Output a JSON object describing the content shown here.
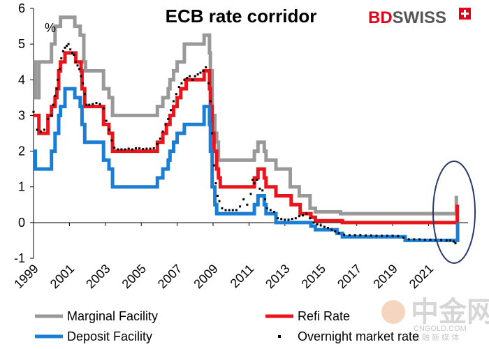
{
  "brand": {
    "name": "BDSWISS",
    "accent": "#e2001a"
  },
  "watermark": {
    "logo_text": "中金网",
    "url_text": "CNGOLD.COM",
    "tagline": "金 融 新 媒 体"
  },
  "chart_data": {
    "type": "line",
    "title": "ECB rate corridor",
    "ylabel": "%",
    "xlabel": "",
    "xlim": [
      1999,
      2023.2
    ],
    "ylim": [
      -1,
      6
    ],
    "grid": false,
    "legend_position": "bottom",
    "x_ticks": [
      "1999",
      "2001",
      "2003",
      "2005",
      "2007",
      "2009",
      "2011",
      "2013",
      "2015",
      "2017",
      "2019",
      "2021"
    ],
    "y_ticks": [
      "6",
      "5",
      "4",
      "3",
      "2",
      "1",
      "0",
      "-1"
    ],
    "annotation": "ellipse highlighting 2022 rate hikes",
    "series": [
      {
        "name": "Marginal Facility",
        "color": "#999999",
        "style": "step",
        "points": [
          [
            1999,
            4.5
          ],
          [
            1999.1,
            3.5
          ],
          [
            1999.3,
            4.5
          ],
          [
            1999.8,
            4.5
          ],
          [
            2000.0,
            5.0
          ],
          [
            2000.2,
            5.5
          ],
          [
            2000.5,
            5.75
          ],
          [
            2000.8,
            5.75
          ],
          [
            2001.3,
            5.5
          ],
          [
            2001.6,
            5.25
          ],
          [
            2001.8,
            4.5
          ],
          [
            2001.9,
            4.25
          ],
          [
            2002.9,
            3.75
          ],
          [
            2003.2,
            3.5
          ],
          [
            2003.4,
            3.0
          ],
          [
            2005.9,
            3.25
          ],
          [
            2006.2,
            3.5
          ],
          [
            2006.5,
            3.75
          ],
          [
            2006.6,
            4.0
          ],
          [
            2006.8,
            4.25
          ],
          [
            2007.0,
            4.5
          ],
          [
            2007.4,
            5.0
          ],
          [
            2008.5,
            5.25
          ],
          [
            2008.8,
            4.75
          ],
          [
            2008.85,
            4.25
          ],
          [
            2008.95,
            3.0
          ],
          [
            2009.1,
            2.5
          ],
          [
            2009.2,
            2.25
          ],
          [
            2009.3,
            1.75
          ],
          [
            2011.3,
            2.0
          ],
          [
            2011.5,
            2.25
          ],
          [
            2011.85,
            2.0
          ],
          [
            2011.95,
            1.75
          ],
          [
            2012.5,
            1.5
          ],
          [
            2013.3,
            1.0
          ],
          [
            2013.8,
            0.75
          ],
          [
            2014.4,
            0.4
          ],
          [
            2014.7,
            0.3
          ],
          [
            2016.1,
            0.25
          ],
          [
            2022.5,
            0.25
          ],
          [
            2022.55,
            0.75
          ]
        ]
      },
      {
        "name": "Refi Rate",
        "color": "#e8161c",
        "style": "step",
        "points": [
          [
            1999,
            3.0
          ],
          [
            1999.3,
            2.5
          ],
          [
            1999.8,
            3.0
          ],
          [
            2000.0,
            3.25
          ],
          [
            2000.2,
            3.5
          ],
          [
            2000.3,
            3.75
          ],
          [
            2000.4,
            4.25
          ],
          [
            2000.5,
            4.5
          ],
          [
            2000.75,
            4.75
          ],
          [
            2001.35,
            4.5
          ],
          [
            2001.65,
            4.25
          ],
          [
            2001.7,
            3.75
          ],
          [
            2001.85,
            3.25
          ],
          [
            2002.9,
            2.75
          ],
          [
            2003.2,
            2.5
          ],
          [
            2003.4,
            2.0
          ],
          [
            2005.9,
            2.25
          ],
          [
            2006.2,
            2.5
          ],
          [
            2006.4,
            2.75
          ],
          [
            2006.6,
            3.0
          ],
          [
            2006.8,
            3.25
          ],
          [
            2007.0,
            3.5
          ],
          [
            2007.2,
            3.75
          ],
          [
            2007.5,
            4.0
          ],
          [
            2008.5,
            4.25
          ],
          [
            2008.8,
            3.75
          ],
          [
            2008.85,
            3.25
          ],
          [
            2008.95,
            2.5
          ],
          [
            2009.05,
            2.0
          ],
          [
            2009.2,
            1.5
          ],
          [
            2009.3,
            1.25
          ],
          [
            2009.4,
            1.0
          ],
          [
            2011.3,
            1.25
          ],
          [
            2011.5,
            1.5
          ],
          [
            2011.85,
            1.25
          ],
          [
            2011.95,
            1.0
          ],
          [
            2012.5,
            0.75
          ],
          [
            2013.35,
            0.5
          ],
          [
            2013.85,
            0.25
          ],
          [
            2014.45,
            0.15
          ],
          [
            2014.7,
            0.05
          ],
          [
            2016.2,
            0.0
          ],
          [
            2022.55,
            0.0
          ],
          [
            2022.6,
            0.5
          ]
        ]
      },
      {
        "name": "Deposit Facility",
        "color": "#1a7fd4",
        "style": "step",
        "points": [
          [
            1999,
            2.0
          ],
          [
            1999.1,
            1.5
          ],
          [
            1999.8,
            1.5
          ],
          [
            2000.0,
            2.0
          ],
          [
            2000.2,
            2.5
          ],
          [
            2000.4,
            3.0
          ],
          [
            2000.5,
            3.25
          ],
          [
            2000.75,
            3.75
          ],
          [
            2001.3,
            3.5
          ],
          [
            2001.6,
            3.25
          ],
          [
            2001.7,
            2.75
          ],
          [
            2001.85,
            2.25
          ],
          [
            2002.9,
            1.75
          ],
          [
            2003.2,
            1.5
          ],
          [
            2003.4,
            1.0
          ],
          [
            2005.9,
            1.25
          ],
          [
            2006.2,
            1.5
          ],
          [
            2006.5,
            1.75
          ],
          [
            2006.6,
            2.0
          ],
          [
            2006.8,
            2.25
          ],
          [
            2007.0,
            2.5
          ],
          [
            2007.4,
            2.75
          ],
          [
            2008.5,
            3.25
          ],
          [
            2008.8,
            2.75
          ],
          [
            2008.85,
            2.0
          ],
          [
            2008.95,
            1.0
          ],
          [
            2009.1,
            0.5
          ],
          [
            2009.2,
            0.25
          ],
          [
            2011.3,
            0.5
          ],
          [
            2011.5,
            0.75
          ],
          [
            2011.85,
            0.5
          ],
          [
            2011.95,
            0.25
          ],
          [
            2012.5,
            0.0
          ],
          [
            2014.45,
            -0.1
          ],
          [
            2014.7,
            -0.2
          ],
          [
            2015.9,
            -0.3
          ],
          [
            2016.2,
            -0.4
          ],
          [
            2019.7,
            -0.5
          ],
          [
            2022.55,
            -0.5
          ],
          [
            2022.62,
            0.0
          ]
        ]
      },
      {
        "name": "Overnight market rate",
        "color": "#000000",
        "style": "scatter",
        "points": [
          [
            1999,
            3.1
          ],
          [
            1999.2,
            2.6
          ],
          [
            1999.4,
            2.55
          ],
          [
            1999.6,
            2.6
          ],
          [
            1999.8,
            2.9
          ],
          [
            2000.0,
            3.0
          ],
          [
            2000.1,
            3.3
          ],
          [
            2000.2,
            3.55
          ],
          [
            2000.3,
            3.75
          ],
          [
            2000.35,
            4.0
          ],
          [
            2000.45,
            4.3
          ],
          [
            2000.55,
            4.6
          ],
          [
            2000.65,
            4.8
          ],
          [
            2000.75,
            4.9
          ],
          [
            2000.85,
            4.95
          ],
          [
            2000.95,
            5.0
          ],
          [
            2001.05,
            4.85
          ],
          [
            2001.15,
            4.75
          ],
          [
            2001.25,
            4.7
          ],
          [
            2001.35,
            4.5
          ],
          [
            2001.45,
            4.4
          ],
          [
            2001.55,
            4.3
          ],
          [
            2001.65,
            4.1
          ],
          [
            2001.75,
            3.9
          ],
          [
            2001.85,
            3.6
          ],
          [
            2001.95,
            3.3
          ],
          [
            2002.1,
            3.3
          ],
          [
            2002.3,
            3.32
          ],
          [
            2002.5,
            3.35
          ],
          [
            2002.7,
            3.32
          ],
          [
            2002.9,
            3.2
          ],
          [
            2003.05,
            2.85
          ],
          [
            2003.2,
            2.6
          ],
          [
            2003.35,
            2.3
          ],
          [
            2003.5,
            2.1
          ],
          [
            2003.7,
            2.05
          ],
          [
            2003.9,
            2.05
          ],
          [
            2004.1,
            2.05
          ],
          [
            2004.3,
            2.07
          ],
          [
            2004.5,
            2.05
          ],
          [
            2004.7,
            2.08
          ],
          [
            2004.9,
            2.08
          ],
          [
            2005.1,
            2.06
          ],
          [
            2005.3,
            2.07
          ],
          [
            2005.5,
            2.07
          ],
          [
            2005.7,
            2.08
          ],
          [
            2005.9,
            2.2
          ],
          [
            2006.05,
            2.35
          ],
          [
            2006.2,
            2.55
          ],
          [
            2006.35,
            2.75
          ],
          [
            2006.5,
            2.9
          ],
          [
            2006.65,
            3.15
          ],
          [
            2006.8,
            3.4
          ],
          [
            2006.95,
            3.6
          ],
          [
            2007.1,
            3.8
          ],
          [
            2007.25,
            3.9
          ],
          [
            2007.4,
            4.0
          ],
          [
            2007.55,
            4.05
          ],
          [
            2007.7,
            4.1
          ],
          [
            2007.85,
            4.0
          ],
          [
            2008.0,
            4.1
          ],
          [
            2008.15,
            4.15
          ],
          [
            2008.3,
            4.2
          ],
          [
            2008.45,
            4.25
          ],
          [
            2008.6,
            4.35
          ],
          [
            2008.75,
            3.9
          ],
          [
            2008.85,
            3.4
          ],
          [
            2008.95,
            2.5
          ],
          [
            2009.05,
            1.6
          ],
          [
            2009.15,
            1.1
          ],
          [
            2009.25,
            0.75
          ],
          [
            2009.35,
            0.6
          ],
          [
            2009.5,
            0.4
          ],
          [
            2009.7,
            0.35
          ],
          [
            2009.9,
            0.35
          ],
          [
            2010.1,
            0.35
          ],
          [
            2010.3,
            0.35
          ],
          [
            2010.5,
            0.45
          ],
          [
            2010.7,
            0.65
          ],
          [
            2010.9,
            0.5
          ],
          [
            2011.1,
            0.8
          ],
          [
            2011.2,
            1.2
          ],
          [
            2011.3,
            1.1
          ],
          [
            2011.45,
            1.2
          ],
          [
            2011.6,
            0.95
          ],
          [
            2011.75,
            0.9
          ],
          [
            2011.9,
            0.65
          ],
          [
            2012.0,
            0.4
          ],
          [
            2012.2,
            0.35
          ],
          [
            2012.4,
            0.3
          ],
          [
            2012.6,
            0.12
          ],
          [
            2012.8,
            0.1
          ],
          [
            2013.0,
            0.08
          ],
          [
            2013.2,
            0.08
          ],
          [
            2013.4,
            0.1
          ],
          [
            2013.6,
            0.12
          ],
          [
            2013.8,
            0.18
          ],
          [
            2014.0,
            0.2
          ],
          [
            2014.2,
            0.25
          ],
          [
            2014.4,
            0.12
          ],
          [
            2014.6,
            0.0
          ],
          [
            2014.8,
            -0.05
          ],
          [
            2015.0,
            -0.08
          ],
          [
            2015.2,
            -0.12
          ],
          [
            2015.4,
            -0.15
          ],
          [
            2015.6,
            -0.2
          ],
          [
            2015.8,
            -0.25
          ],
          [
            2016.0,
            -0.3
          ],
          [
            2016.3,
            -0.34
          ],
          [
            2016.6,
            -0.35
          ],
          [
            2016.9,
            -0.35
          ],
          [
            2017.2,
            -0.35
          ],
          [
            2017.5,
            -0.36
          ],
          [
            2017.8,
            -0.36
          ],
          [
            2018.1,
            -0.37
          ],
          [
            2018.4,
            -0.37
          ],
          [
            2018.7,
            -0.37
          ],
          [
            2019.0,
            -0.37
          ],
          [
            2019.3,
            -0.38
          ],
          [
            2019.6,
            -0.42
          ],
          [
            2019.9,
            -0.47
          ],
          [
            2020.2,
            -0.47
          ],
          [
            2020.5,
            -0.47
          ],
          [
            2020.8,
            -0.48
          ],
          [
            2021.1,
            -0.48
          ],
          [
            2021.4,
            -0.49
          ],
          [
            2021.7,
            -0.49
          ],
          [
            2022.0,
            -0.5
          ],
          [
            2022.2,
            -0.5
          ],
          [
            2022.4,
            -0.53
          ],
          [
            2022.5,
            -0.58
          ]
        ]
      }
    ]
  }
}
